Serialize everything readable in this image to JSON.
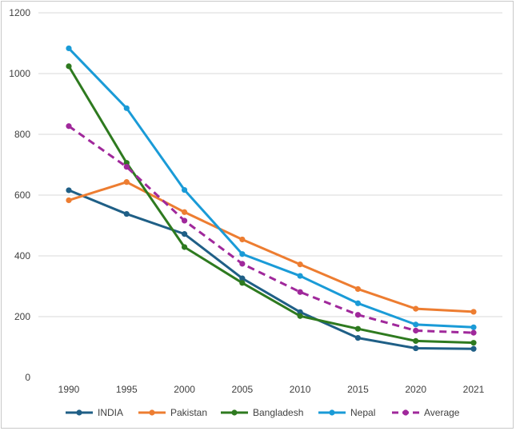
{
  "chart_data": {
    "type": "line",
    "categories": [
      "1990",
      "1995",
      "2000",
      "2005",
      "2010",
      "2015",
      "2020",
      "2021"
    ],
    "ylim": [
      0,
      1200
    ],
    "yticks": [
      "0",
      "200",
      "400",
      "600",
      "800",
      "1000",
      "1200"
    ],
    "grid": true,
    "legend_position": "bottom",
    "series": [
      {
        "name": "INDIA",
        "color": "#1f5f86",
        "dashed": false,
        "values": [
          616,
          538,
          472,
          326,
          215,
          130,
          96,
          94
        ]
      },
      {
        "name": "Pakistan",
        "color": "#ed7d31",
        "dashed": false,
        "values": [
          583,
          643,
          544,
          454,
          372,
          291,
          226,
          216
        ]
      },
      {
        "name": "Bangladesh",
        "color": "#2e7a1f",
        "dashed": false,
        "values": [
          1024,
          706,
          429,
          311,
          202,
          160,
          120,
          114
        ]
      },
      {
        "name": "Nepal",
        "color": "#1a9bd7",
        "dashed": false,
        "values": [
          1083,
          886,
          617,
          406,
          334,
          244,
          174,
          165
        ]
      },
      {
        "name": "Average",
        "color": "#a0289b",
        "dashed": true,
        "values": [
          827,
          693,
          516,
          374,
          281,
          206,
          154,
          147
        ]
      }
    ]
  }
}
